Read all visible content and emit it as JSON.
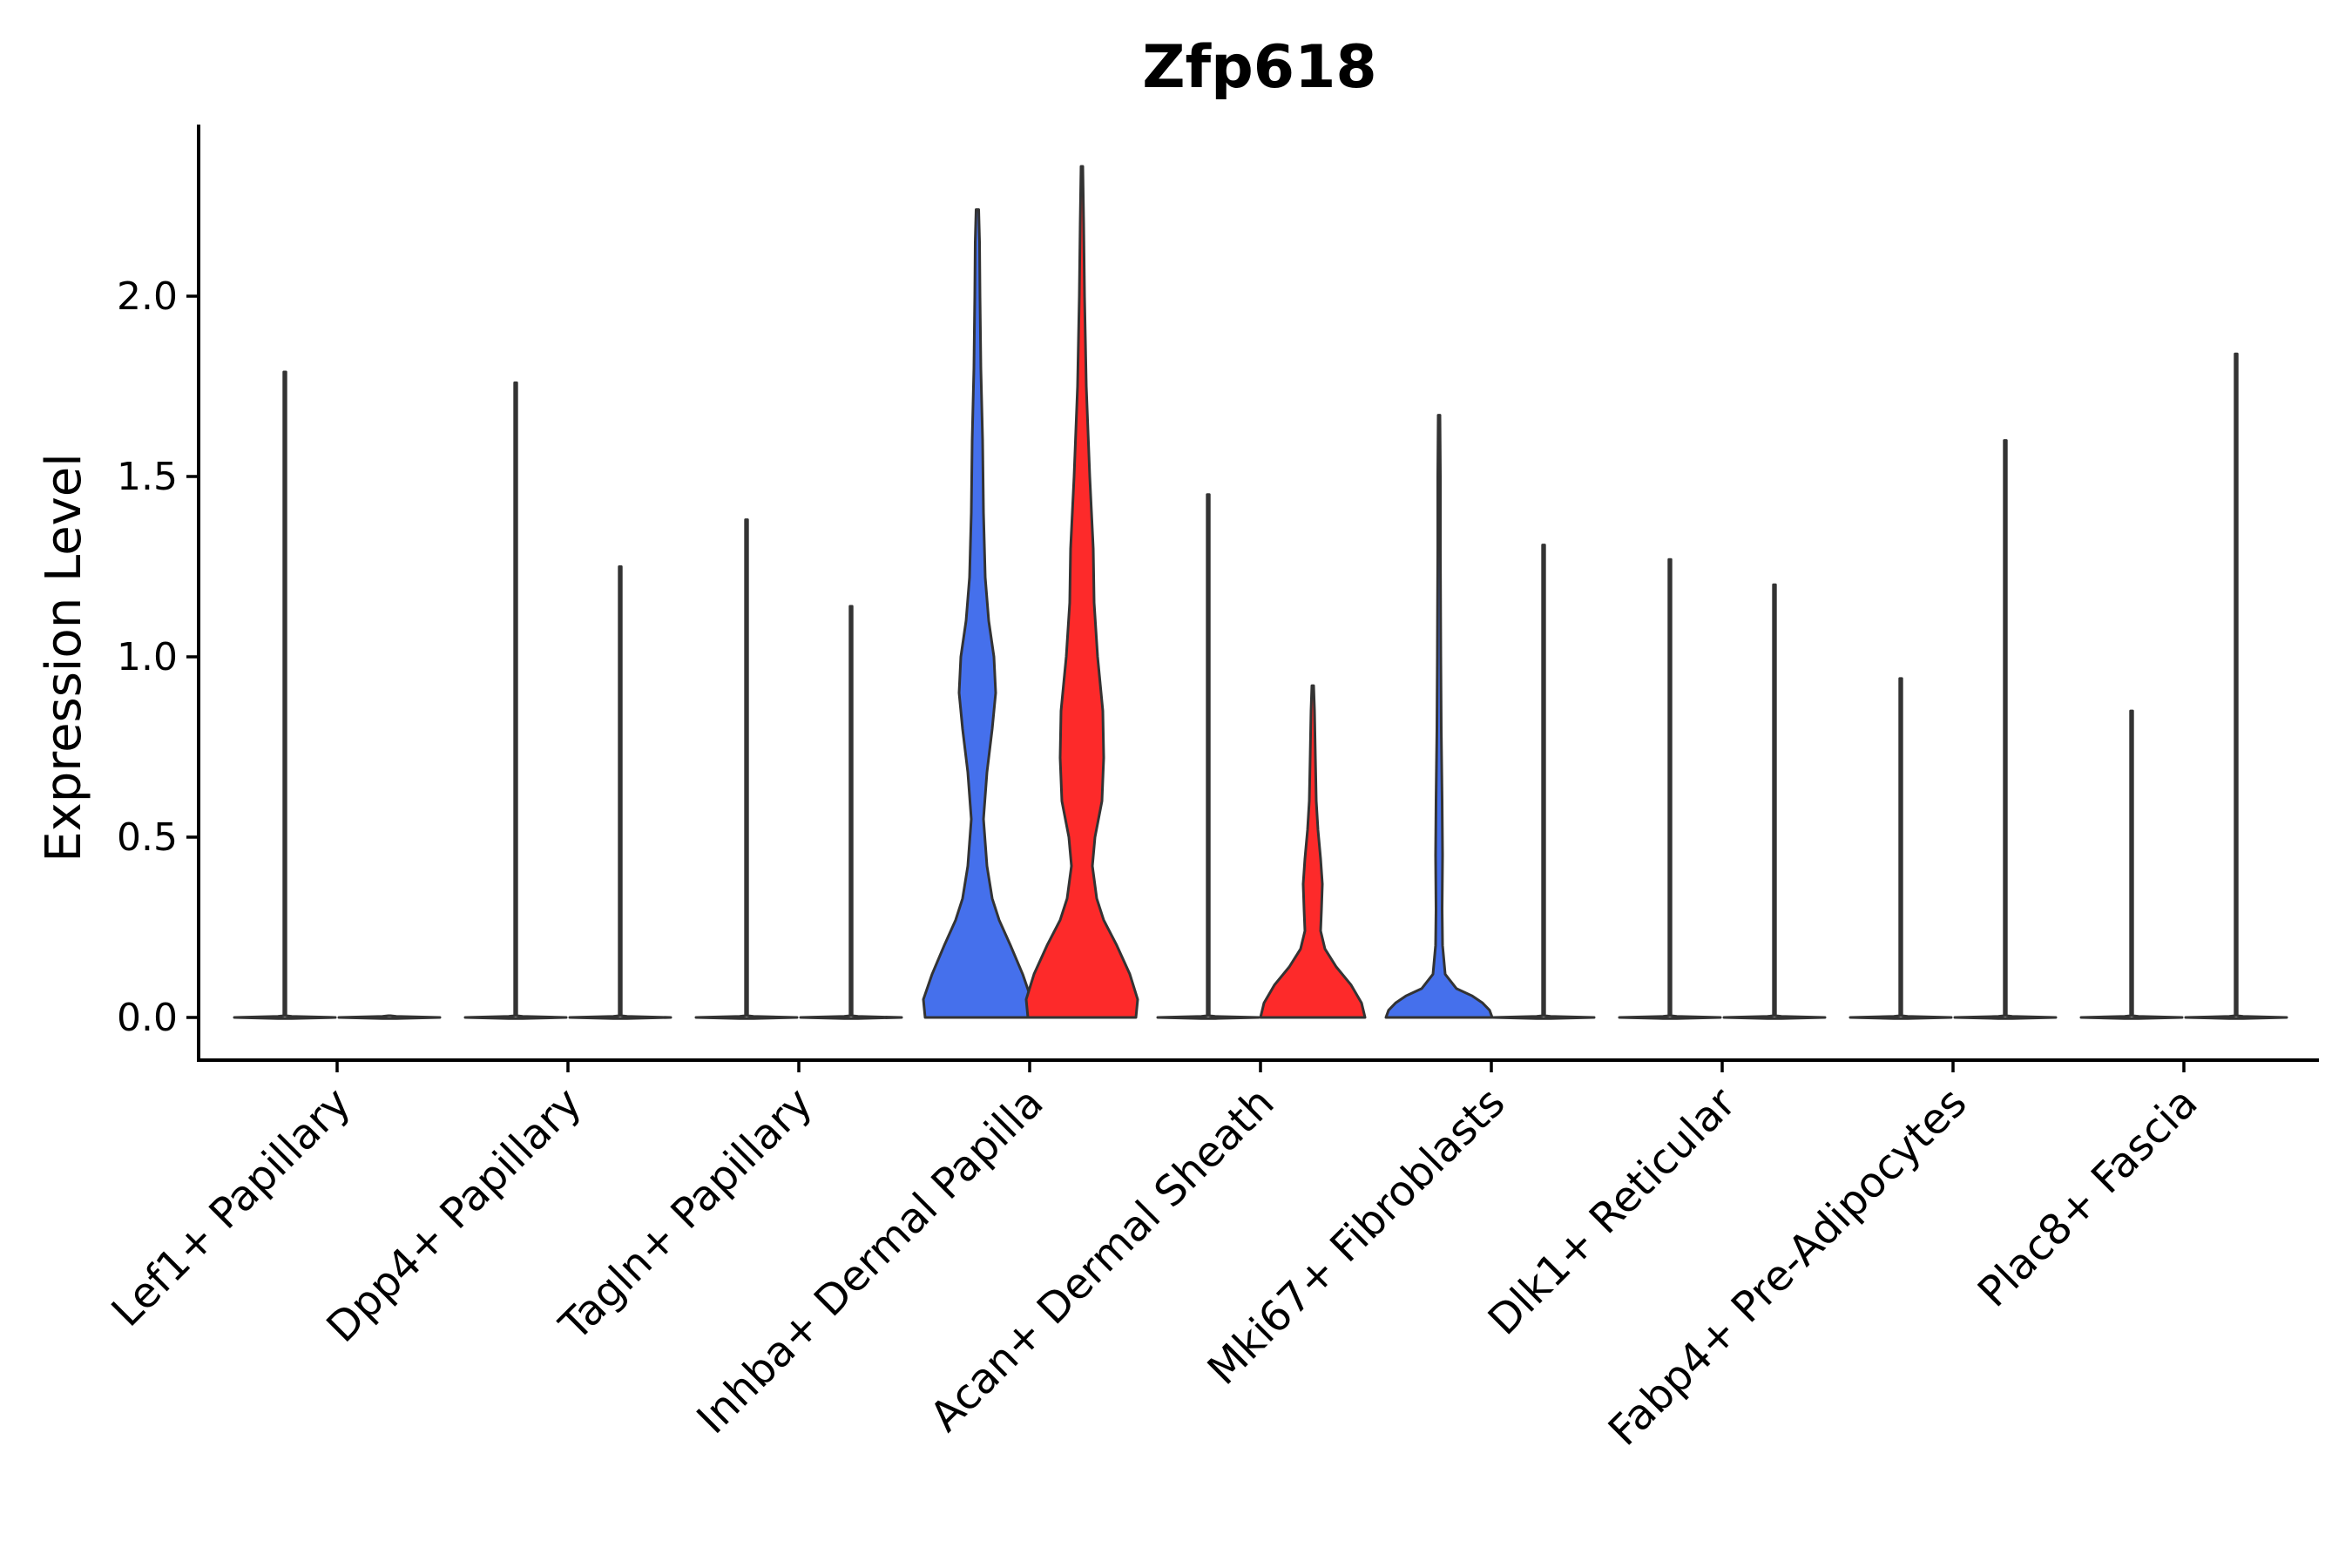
{
  "chart_data": {
    "type": "violin",
    "title": "Zfp618",
    "xlabel": "",
    "ylabel": "Expression Level",
    "ylim": [
      -0.12,
      2.47
    ],
    "yticks": [
      "0.0",
      "0.5",
      "1.0",
      "1.5",
      "2.0"
    ],
    "categories": [
      "Lef1+ Papillary",
      "Dpp4+ Papillary",
      "Tagln+ Papillary",
      "Inhba+ Dermal Papilla",
      "Acan+ Dermal Sheath",
      "Mki67+ Fibroblasts",
      "Dlk1+ Reticular",
      "Fabp4+ Pre-Adipocytes",
      "Plac8+ Fascia"
    ],
    "split_colors": {
      "blue": "#4570EC",
      "red": "#FD2A2A"
    },
    "series": [
      {
        "name": "left (blue)",
        "color": "#4570EC",
        "max": [
          1.79,
          1.76,
          1.38,
          2.24,
          1.45,
          1.67,
          1.27,
          0.94,
          0.85
        ],
        "highlighted": [
          false,
          false,
          false,
          true,
          false,
          true,
          false,
          false,
          false
        ]
      },
      {
        "name": "right (red)",
        "color": "#FD2A2A",
        "max": [
          0.0,
          1.25,
          1.14,
          2.36,
          0.92,
          1.31,
          1.2,
          1.6,
          1.84
        ],
        "highlighted": [
          false,
          false,
          false,
          true,
          true,
          false,
          false,
          false,
          false
        ]
      }
    ]
  }
}
